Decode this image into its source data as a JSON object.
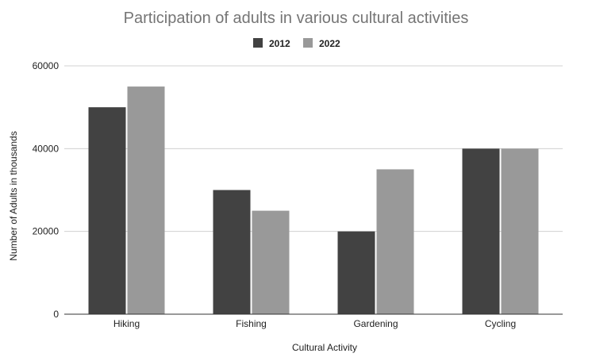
{
  "chart_data": {
    "type": "bar",
    "title": "Participation of adults in various cultural activities",
    "xlabel": "Cultural Activity",
    "ylabel": "Number of Adults in thousands",
    "categories": [
      "Hiking",
      "Fishing",
      "Gardening",
      "Cycling"
    ],
    "series": [
      {
        "name": "2012",
        "color": "#424242",
        "values": [
          50000,
          30000,
          20000,
          40000
        ]
      },
      {
        "name": "2022",
        "color": "#999999",
        "values": [
          55000,
          25000,
          35000,
          40000
        ]
      }
    ],
    "ylim": [
      0,
      60000
    ],
    "yticks": [
      "0",
      "20000",
      "40000",
      "60000"
    ],
    "ytick_values": [
      0,
      20000,
      40000,
      60000
    ],
    "grid": true,
    "legend": "top-center",
    "grid_color": "#d0d0d0",
    "axis_color": "#333333"
  }
}
